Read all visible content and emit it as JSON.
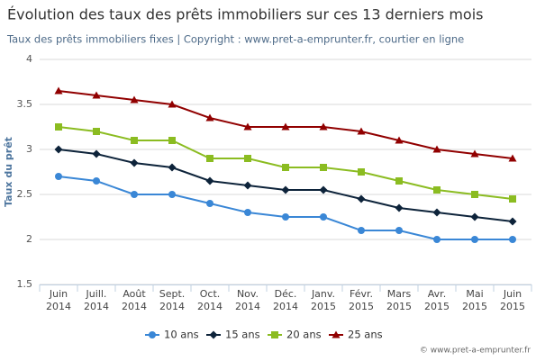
{
  "chart_data": {
    "type": "line",
    "title": "Évolution des taux des prêts immobiliers sur ces 13 derniers mois",
    "subtitle": "Taux des prêts immobiliers fixes | Copyright : www.pret-a-emprunter.fr, courtier en ligne",
    "y_label": "Taux du prêt",
    "credit": "© www.pret-a-emprunter.fr",
    "categories": [
      "Juin 2014",
      "Juill. 2014",
      "Août 2014",
      "Sept. 2014",
      "Oct. 2014",
      "Nov. 2014",
      "Déc. 2014",
      "Janv. 2015",
      "Févr. 2015",
      "Mars 2015",
      "Avr. 2015",
      "Mai 2015",
      "Juin 2015"
    ],
    "ylim": [
      1.5,
      4
    ],
    "yticks": [
      1.5,
      2,
      2.5,
      3,
      3.5,
      4
    ],
    "grid": true,
    "series": [
      {
        "name": "10 ans",
        "color": "#3a87d6",
        "marker": "circle",
        "values": [
          2.7,
          2.65,
          2.5,
          2.5,
          2.4,
          2.3,
          2.25,
          2.25,
          2.1,
          2.1,
          2.0,
          2.0,
          2.0
        ]
      },
      {
        "name": "15 ans",
        "color": "#0d233a",
        "marker": "diamond",
        "values": [
          3.0,
          2.95,
          2.85,
          2.8,
          2.65,
          2.6,
          2.55,
          2.55,
          2.45,
          2.35,
          2.3,
          2.25,
          2.2
        ]
      },
      {
        "name": "20 ans",
        "color": "#8bbc21",
        "marker": "square",
        "values": [
          3.25,
          3.2,
          3.1,
          3.1,
          2.9,
          2.9,
          2.8,
          2.8,
          2.75,
          2.65,
          2.55,
          2.5,
          2.45
        ]
      },
      {
        "name": "25 ans",
        "color": "#910000",
        "marker": "triangle",
        "values": [
          3.65,
          3.6,
          3.55,
          3.5,
          3.35,
          3.25,
          3.25,
          3.25,
          3.2,
          3.1,
          3.0,
          2.95,
          2.9
        ]
      }
    ]
  }
}
